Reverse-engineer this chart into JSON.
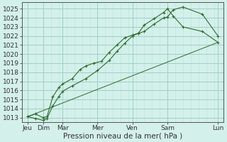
{
  "xlabel": "Pression niveau de la mer( hPa )",
  "bg_color": "#d4f0eb",
  "grid_minor_color": "#b8e4dc",
  "grid_major_color": "#9ecfc5",
  "line_color": "#2d6a2d",
  "ylim": [
    1012.5,
    1025.7
  ],
  "xlim": [
    -0.3,
    10.1
  ],
  "day_labels": [
    "Jeu",
    "Dim",
    "Mar",
    "Mer",
    "Ven",
    "Sam",
    "Lun"
  ],
  "day_positions": [
    0,
    0.8,
    1.8,
    3.6,
    5.4,
    7.2,
    9.8
  ],
  "line1_x": [
    0.0,
    0.4,
    0.8,
    1.0,
    1.3,
    1.6,
    1.8,
    2.3,
    2.7,
    3.0,
    3.4,
    3.8,
    4.2,
    4.6,
    5.0,
    5.4,
    5.7,
    6.0,
    6.5,
    7.0,
    7.2,
    7.5,
    8.0,
    9.0,
    9.8
  ],
  "line1_y": [
    1013.1,
    1013.4,
    1013.0,
    1013.1,
    1015.3,
    1016.3,
    1016.7,
    1017.3,
    1018.3,
    1018.7,
    1019.0,
    1019.2,
    1020.2,
    1021.0,
    1021.8,
    1022.1,
    1022.3,
    1022.5,
    1023.3,
    1024.0,
    1024.1,
    1024.9,
    1025.2,
    1024.4,
    1022.0
  ],
  "line2_x": [
    0.0,
    0.4,
    0.8,
    1.0,
    1.3,
    1.6,
    1.8,
    2.3,
    3.0,
    3.6,
    4.2,
    4.6,
    5.0,
    5.4,
    5.7,
    6.0,
    6.5,
    7.0,
    7.2,
    7.5,
    8.0,
    9.0,
    9.8
  ],
  "line2_y": [
    1013.1,
    1012.9,
    1012.7,
    1012.9,
    1014.3,
    1015.3,
    1015.9,
    1016.5,
    1017.3,
    1018.2,
    1019.3,
    1020.3,
    1021.2,
    1022.0,
    1022.3,
    1023.2,
    1023.9,
    1024.6,
    1025.0,
    1024.2,
    1023.0,
    1022.5,
    1021.3
  ],
  "line3_x": [
    0.0,
    9.8
  ],
  "line3_y": [
    1013.1,
    1021.3
  ],
  "yticks": [
    1013,
    1014,
    1015,
    1016,
    1017,
    1018,
    1019,
    1020,
    1021,
    1022,
    1023,
    1024,
    1025
  ],
  "xlabel_fontsize": 7.5,
  "tick_fontsize": 6.5
}
